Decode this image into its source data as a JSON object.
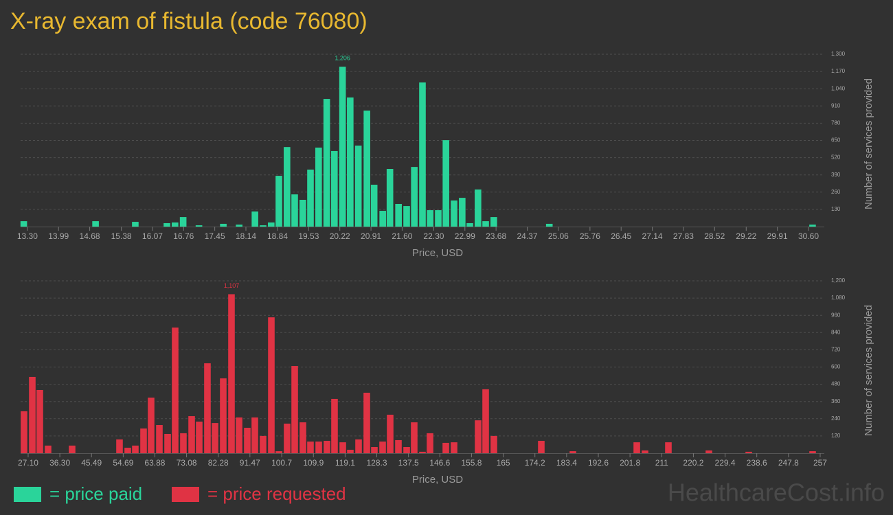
{
  "title": "X-ray exam of fistula (code 76080)",
  "chart_data": [
    {
      "type": "bar",
      "color": "#2ad49a",
      "xlabel": "Price, USD",
      "ylabel": "Number of services provided",
      "grid": true,
      "x": [
        13.22,
        14.81,
        15.69,
        16.39,
        16.57,
        16.75,
        17.1,
        17.64,
        17.99,
        18.34,
        18.52,
        18.7,
        18.87,
        19.05,
        19.22,
        19.4,
        19.57,
        19.75,
        19.93,
        20.1,
        20.28,
        20.45,
        20.63,
        20.82,
        20.98,
        21.17,
        21.33,
        21.52,
        21.7,
        21.87,
        22.05,
        22.22,
        22.4,
        22.57,
        22.75,
        22.93,
        23.1,
        23.28,
        23.45,
        23.63,
        24.86,
        30.69
      ],
      "values": [
        41,
        41,
        36,
        26,
        31,
        72,
        10,
        21,
        15,
        114,
        10,
        31,
        383,
        600,
        243,
        202,
        430,
        596,
        963,
        570,
        1206,
        974,
        611,
        875,
        316,
        119,
        435,
        171,
        155,
        450,
        1087,
        124,
        124,
        652,
        197,
        217,
        26,
        280,
        41,
        72,
        21,
        15
      ],
      "value_labels": [
        null,
        null,
        null,
        null,
        null,
        null,
        null,
        null,
        null,
        null,
        null,
        null,
        null,
        null,
        null,
        null,
        null,
        null,
        null,
        null,
        "1,206",
        null,
        null,
        null,
        null,
        null,
        null,
        null,
        null,
        null,
        null,
        null,
        null,
        null,
        null,
        null,
        null,
        null,
        null,
        null,
        null,
        null
      ],
      "xlim": [
        13.15,
        30.95
      ],
      "xticks": [
        {
          "value": 13.3,
          "label": "13.30"
        },
        13.99,
        14.68,
        15.38,
        16.07,
        16.76,
        17.45,
        18.14,
        18.84,
        19.53,
        20.22,
        20.91,
        {
          "value": 21.6,
          "label": "21.60"
        },
        {
          "value": 22.3,
          "label": "22.30"
        },
        22.99,
        23.68,
        24.37,
        25.06,
        25.76,
        26.45,
        27.14,
        27.83,
        28.52,
        29.22,
        29.91,
        {
          "value": 30.6,
          "label": "30.60"
        }
      ],
      "ylim": [
        0,
        1300
      ],
      "yticks": [
        130,
        260,
        390,
        520,
        650,
        780,
        910,
        {
          "value": 1040,
          "label": "1,040"
        },
        {
          "value": 1170,
          "label": "1,170"
        },
        {
          "value": 1300,
          "label": "1,300"
        }
      ]
    },
    {
      "type": "bar",
      "color": "#e03344",
      "xlabel": "Price, USD",
      "ylabel": "Number of services provided",
      "grid": true,
      "x": [
        25.9,
        28.3,
        30.49,
        32.88,
        39.86,
        53.62,
        56.01,
        58.21,
        60.6,
        62.79,
        65.19,
        67.58,
        69.77,
        72.16,
        74.56,
        76.75,
        79.14,
        81.34,
        83.73,
        86.12,
        88.32,
        90.71,
        92.9,
        95.29,
        97.69,
        99.88,
        102.27,
        104.47,
        106.86,
        109.05,
        111.45,
        113.84,
        116.03,
        118.43,
        120.62,
        123.01,
        125.4,
        127.6,
        129.99,
        132.18,
        134.58,
        136.97,
        139.16,
        141.56,
        143.75,
        148.34,
        150.73,
        157.71,
        159.9,
        162.29,
        176.05,
        185.22,
        203.77,
        206.16,
        212.94,
        224.7,
        236.27,
        254.81
      ],
      "values": [
        292,
        531,
        440,
        53,
        53,
        96,
        38,
        53,
        172,
        387,
        196,
        134,
        875,
        139,
        258,
        220,
        626,
        210,
        521,
        1107,
        249,
        177,
        249,
        120,
        946,
        14,
        206,
        607,
        215,
        81,
        81,
        86,
        378,
        76,
        24,
        96,
        421,
        43,
        81,
        268,
        91,
        43,
        215,
        10,
        139,
        72,
        76,
        229,
        445,
        120,
        86,
        14,
        76,
        19,
        76,
        19,
        10,
        14
      ],
      "value_labels": [
        null,
        null,
        null,
        null,
        null,
        null,
        null,
        null,
        null,
        null,
        null,
        null,
        null,
        null,
        null,
        null,
        null,
        null,
        null,
        "1,107",
        null,
        null,
        null,
        null,
        null,
        null,
        null,
        null,
        null,
        null,
        null,
        null,
        null,
        null,
        null,
        null,
        null,
        null,
        null,
        null,
        null,
        null,
        null,
        null,
        null,
        null,
        null,
        null,
        null,
        null,
        null,
        null,
        null,
        null,
        null,
        null,
        null,
        null
      ],
      "xlim": [
        24.91,
        258.2
      ],
      "xticks": [
        {
          "value": 27.1,
          "label": "27.10"
        },
        {
          "value": 36.3,
          "label": "36.30"
        },
        45.49,
        54.69,
        63.88,
        73.08,
        82.28,
        91.47,
        100.7,
        109.9,
        119.1,
        128.3,
        137.5,
        146.6,
        155.8,
        165,
        174.2,
        183.4,
        192.6,
        201.8,
        211,
        220.2,
        229.4,
        238.6,
        247.8,
        257
      ],
      "ylim": [
        0,
        1200
      ],
      "yticks": [
        120,
        240,
        360,
        480,
        600,
        720,
        840,
        960,
        {
          "value": 1080,
          "label": "1,080"
        },
        {
          "value": 1200,
          "label": "1,200"
        }
      ]
    }
  ],
  "legend": [
    {
      "label": "= price paid",
      "color": "#2ad49a"
    },
    {
      "label": "= price requested",
      "color": "#e03344"
    }
  ],
  "watermark": "HealthcareCost.info"
}
